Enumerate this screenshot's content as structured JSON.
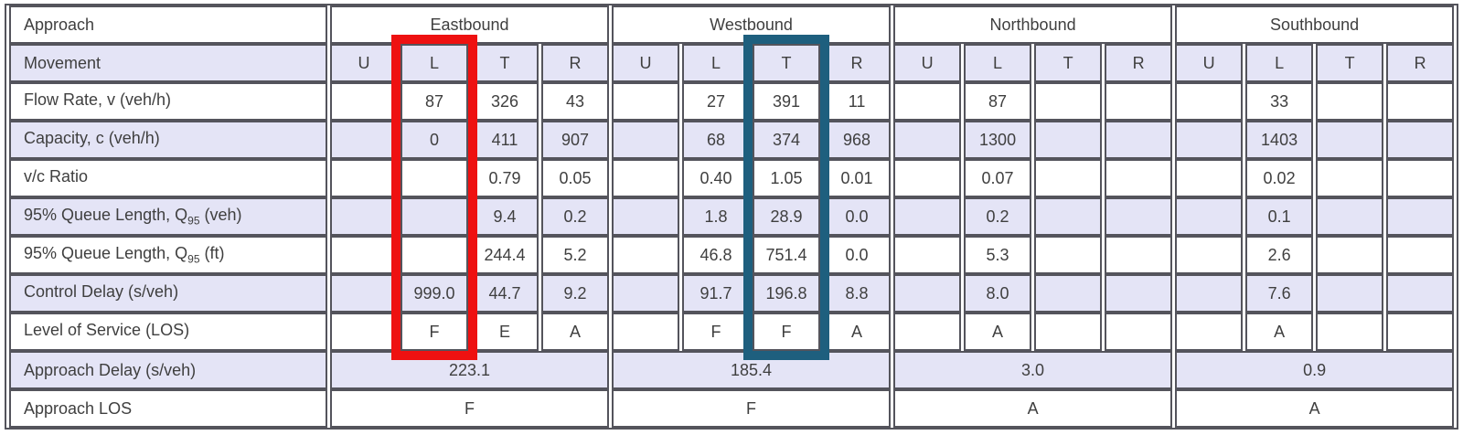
{
  "table": {
    "corner_label": "Approach",
    "movement_label": "Movement",
    "directions": [
      "Eastbound",
      "Westbound",
      "Northbound",
      "Southbound"
    ],
    "movement_cols": [
      "U",
      "L",
      "T",
      "R"
    ],
    "rows": [
      {
        "label": "Flow Rate, v (veh/h)",
        "label_sub": "",
        "label_suffix": "",
        "values": [
          "",
          "87",
          "326",
          "43",
          "",
          "27",
          "391",
          "11",
          "",
          "87",
          "",
          "",
          "",
          "33",
          "",
          ""
        ]
      },
      {
        "label": "Capacity, c (veh/h)",
        "label_sub": "",
        "label_suffix": "",
        "values": [
          "",
          "0",
          "411",
          "907",
          "",
          "68",
          "374",
          "968",
          "",
          "1300",
          "",
          "",
          "",
          "1403",
          "",
          ""
        ]
      },
      {
        "label": "v/c Ratio",
        "label_sub": "",
        "label_suffix": "",
        "values": [
          "",
          "",
          "0.79",
          "0.05",
          "",
          "0.40",
          "1.05",
          "0.01",
          "",
          "0.07",
          "",
          "",
          "",
          "0.02",
          "",
          ""
        ]
      },
      {
        "label": "95% Queue Length, Q",
        "label_sub": "95",
        "label_suffix": " (veh)",
        "values": [
          "",
          "",
          "9.4",
          "0.2",
          "",
          "1.8",
          "28.9",
          "0.0",
          "",
          "0.2",
          "",
          "",
          "",
          "0.1",
          "",
          ""
        ]
      },
      {
        "label": "95% Queue Length, Q",
        "label_sub": "95",
        "label_suffix": " (ft)",
        "values": [
          "",
          "",
          "244.4",
          "5.2",
          "",
          "46.8",
          "751.4",
          "0.0",
          "",
          "5.3",
          "",
          "",
          "",
          "2.6",
          "",
          ""
        ]
      },
      {
        "label": "Control Delay (s/veh)",
        "label_sub": "",
        "label_suffix": "",
        "values": [
          "",
          "999.0",
          "44.7",
          "9.2",
          "",
          "91.7",
          "196.8",
          "8.8",
          "",
          "8.0",
          "",
          "",
          "",
          "7.6",
          "",
          ""
        ]
      },
      {
        "label": "Level of Service (LOS)",
        "label_sub": "",
        "label_suffix": "",
        "values": [
          "",
          "F",
          "E",
          "A",
          "",
          "F",
          "F",
          "A",
          "",
          "A",
          "",
          "",
          "",
          "A",
          "",
          ""
        ]
      }
    ],
    "approach_delay": {
      "label": "Approach Delay (s/veh)",
      "values": [
        "223.1",
        "185.4",
        "3.0",
        "0.9"
      ]
    },
    "approach_los": {
      "label": "Approach LOS",
      "values": [
        "F",
        "F",
        "A",
        "A"
      ]
    }
  },
  "highlights": [
    {
      "name": "eastbound-left-highlight-box",
      "direction": "Eastbound",
      "movement": "L",
      "column_index": 1,
      "color": "#ee1111"
    },
    {
      "name": "westbound-through-highlight-box",
      "direction": "Westbound",
      "movement": "T",
      "column_index": 6,
      "color": "#1e5f7e"
    }
  ],
  "colors": {
    "background": "#ffffff",
    "row-shade": "#e4e4f6",
    "grid": "#54545c",
    "text": "#3f3f3f"
  }
}
